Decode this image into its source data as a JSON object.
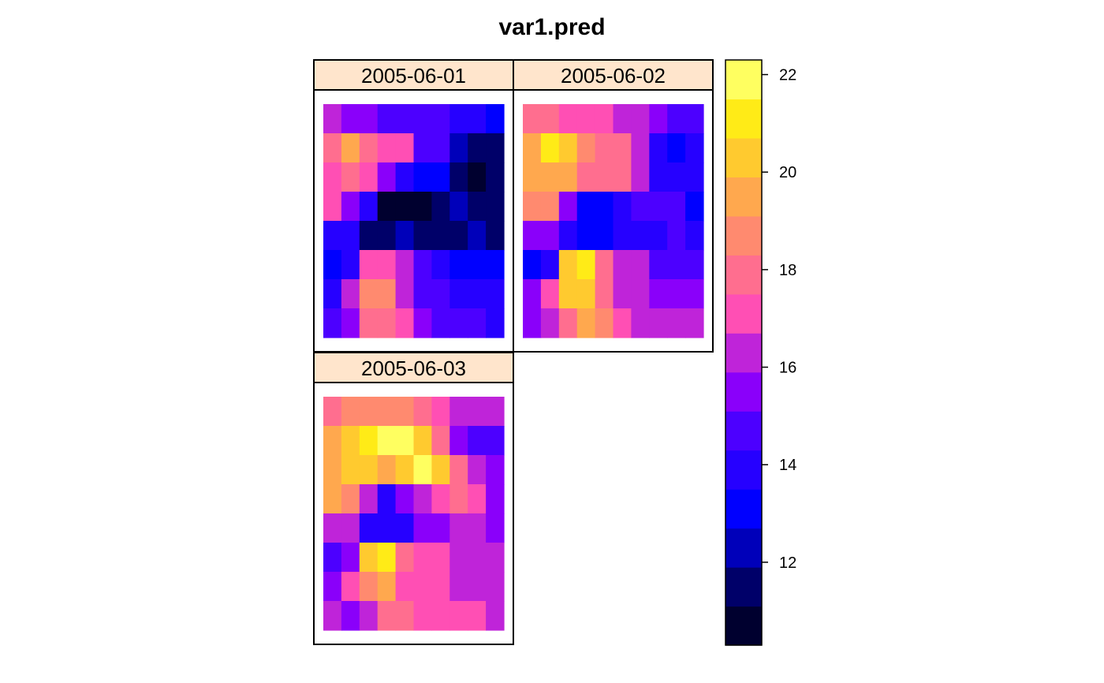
{
  "chart_data": {
    "type": "heatmap",
    "title": "var1.pred",
    "panels": [
      {
        "label": "2005-06-01",
        "rows": [
          [
            16.5,
            15.8,
            15.8,
            14.7,
            14.7,
            14.5,
            14.5,
            13.8,
            13.8,
            13.3
          ],
          [
            17.5,
            19.7,
            17.8,
            16.8,
            16.8,
            14.9,
            14.5,
            12.6,
            11.6,
            11.6
          ],
          [
            17.2,
            18.1,
            17.2,
            15.8,
            14.2,
            13.3,
            13.3,
            11.8,
            10.8,
            11.6
          ],
          [
            16.8,
            15.6,
            13.8,
            10.9,
            10.9,
            10.9,
            11.4,
            12.7,
            11.6,
            11.6
          ],
          [
            14.1,
            14.1,
            11.7,
            11.3,
            12.4,
            11.4,
            11.4,
            11.4,
            12.1,
            11.3
          ],
          [
            13.2,
            13.8,
            17.2,
            17.2,
            16.3,
            14.6,
            13.9,
            13.3,
            13.3,
            13.3
          ],
          [
            13.8,
            16.4,
            18.7,
            18.7,
            16.3,
            14.6,
            14.6,
            13.9,
            13.9,
            13.9
          ],
          [
            14.8,
            15.8,
            17.8,
            17.8,
            17.2,
            15.8,
            14.9,
            14.9,
            14.9,
            14.1
          ]
        ]
      },
      {
        "label": "2005-06-02",
        "rows": [
          [
            17.8,
            17.8,
            17.2,
            17.2,
            17.2,
            16.5,
            16.5,
            15.8,
            14.9,
            14.9
          ],
          [
            19.6,
            21.3,
            20.3,
            18.7,
            17.8,
            17.8,
            16.5,
            14.2,
            13.2,
            14.2
          ],
          [
            19.6,
            19.6,
            19.6,
            17.8,
            17.8,
            17.8,
            16.5,
            14.2,
            14.2,
            14.2
          ],
          [
            18.7,
            18.7,
            15.8,
            13.3,
            13.3,
            14.2,
            14.8,
            14.8,
            14.8,
            13.3
          ],
          [
            15.6,
            15.6,
            14.1,
            13.3,
            13.3,
            14.1,
            14.1,
            14.1,
            15.1,
            14.1
          ],
          [
            13.1,
            14.2,
            20.2,
            21.4,
            17.8,
            16.5,
            16.5,
            14.9,
            14.9,
            14.9
          ],
          [
            15.9,
            17.2,
            20.2,
            20.2,
            17.8,
            16.5,
            16.5,
            15.8,
            15.8,
            15.8
          ],
          [
            15.9,
            16.4,
            17.8,
            19.6,
            18.7,
            17.2,
            16.5,
            16.5,
            16.5,
            16.5
          ]
        ]
      },
      {
        "label": "2005-06-03",
        "rows": [
          [
            17.8,
            18.7,
            18.7,
            18.7,
            18.7,
            17.8,
            17.2,
            16.5,
            16.5,
            16.5
          ],
          [
            19.6,
            20.3,
            21.4,
            22.1,
            22.1,
            20.3,
            17.8,
            15.8,
            14.9,
            14.9
          ],
          [
            19.6,
            20.3,
            20.3,
            19.6,
            20.3,
            22.1,
            20.3,
            17.8,
            16.5,
            15.8
          ],
          [
            19.6,
            18.7,
            16.5,
            14.2,
            15.8,
            16.5,
            17.2,
            17.8,
            17.2,
            15.8
          ],
          [
            16.5,
            16.5,
            14.2,
            14.2,
            14.2,
            15.8,
            15.8,
            16.5,
            16.5,
            15.8
          ],
          [
            14.9,
            15.8,
            20.3,
            21.4,
            17.8,
            17.2,
            17.2,
            16.5,
            16.5,
            16.5
          ],
          [
            15.8,
            17.2,
            18.7,
            19.6,
            17.2,
            17.2,
            17.2,
            16.5,
            16.5,
            16.5
          ],
          [
            16.5,
            15.8,
            16.5,
            17.8,
            17.8,
            17.2,
            17.2,
            17.2,
            17.2,
            16.5
          ]
        ]
      }
    ],
    "colorbar": {
      "range": [
        10.3,
        22.3
      ],
      "ticks": [
        12,
        14,
        16,
        18,
        20,
        22
      ],
      "tick_labels": [
        "12",
        "14",
        "16",
        "18",
        "20",
        "22"
      ],
      "colors": [
        "#00002F",
        "#000069",
        "#0000BA",
        "#0000FF",
        "#2600FF",
        "#4C00FF",
        "#8A00FA",
        "#BF24D9",
        "#FF4FB4",
        "#FF6E8F",
        "#FF8A6F",
        "#FFA84E",
        "#FFCA2F",
        "#FFEB17",
        "#FFFF60"
      ],
      "placement": "right"
    },
    "strip_color": "#FFE5CC",
    "legend": "colorbar right"
  }
}
